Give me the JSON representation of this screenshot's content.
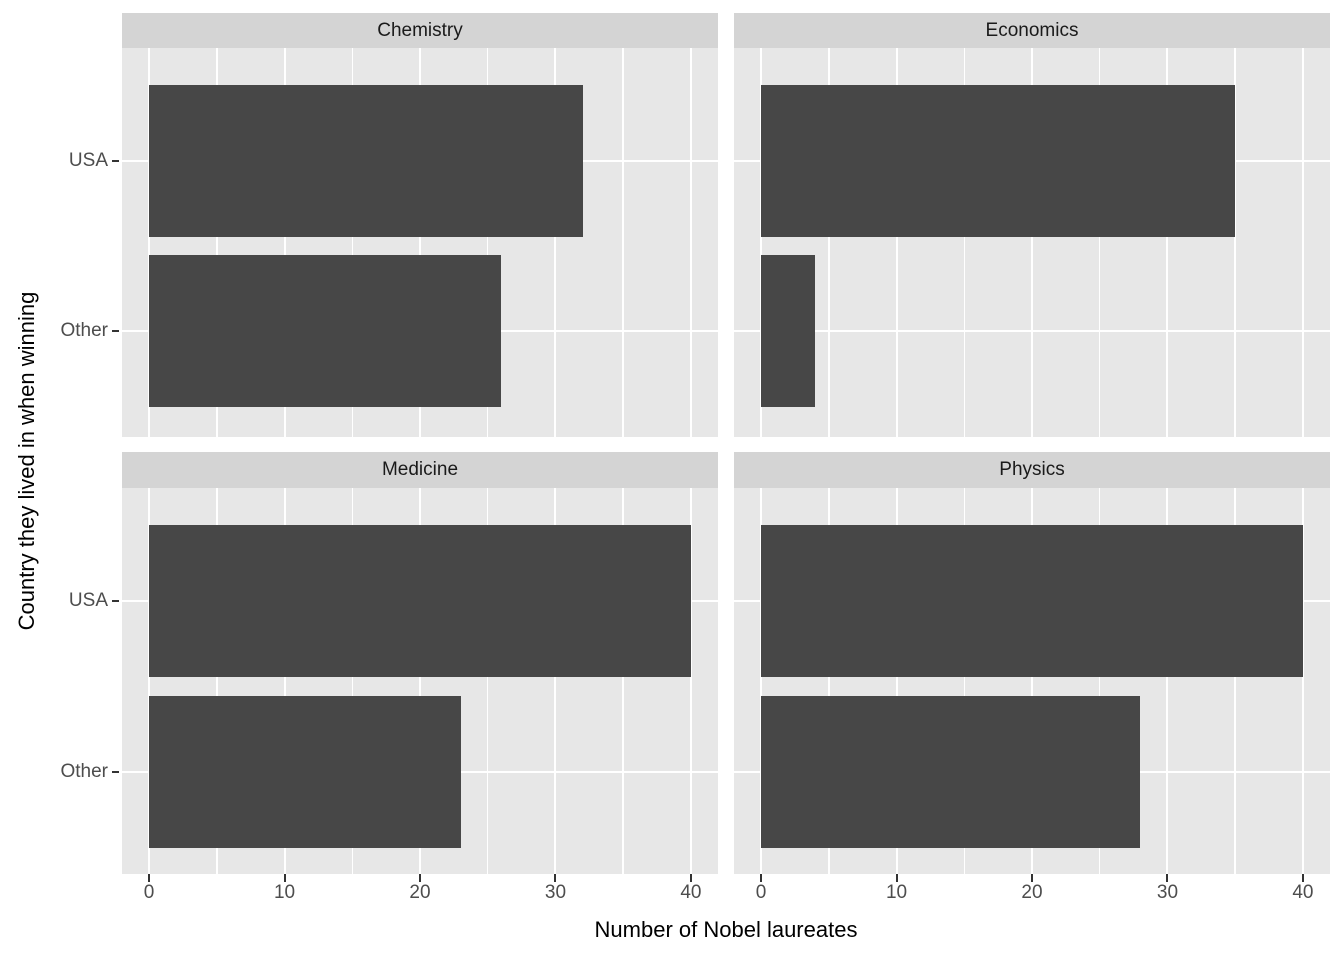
{
  "chart_data": {
    "type": "bar",
    "orientation": "horizontal",
    "title": "",
    "xlabel": "Number of Nobel laureates",
    "ylabel": "Country they lived in when winning",
    "categories": [
      "USA",
      "Other"
    ],
    "facets": [
      {
        "name": "Chemistry",
        "values": [
          32,
          26
        ]
      },
      {
        "name": "Economics",
        "values": [
          35,
          4
        ]
      },
      {
        "name": "Medicine",
        "values": [
          40,
          23
        ]
      },
      {
        "name": "Physics",
        "values": [
          40,
          28
        ]
      }
    ],
    "x_ticks": [
      0,
      10,
      20,
      30,
      40
    ],
    "x_minor_ticks": [
      5,
      15,
      25,
      35
    ],
    "xlim": [
      -2,
      42
    ],
    "grid": true,
    "legend": "none",
    "colors": {
      "bar": "#474747",
      "panel_background": "#E7E7E7",
      "strip_background": "#D4D4D4",
      "gridline": "#FFFFFF",
      "tick_text": "#4D4D4D",
      "axis_title_text": "#000000",
      "figure_background": "#FFFFFF"
    }
  }
}
